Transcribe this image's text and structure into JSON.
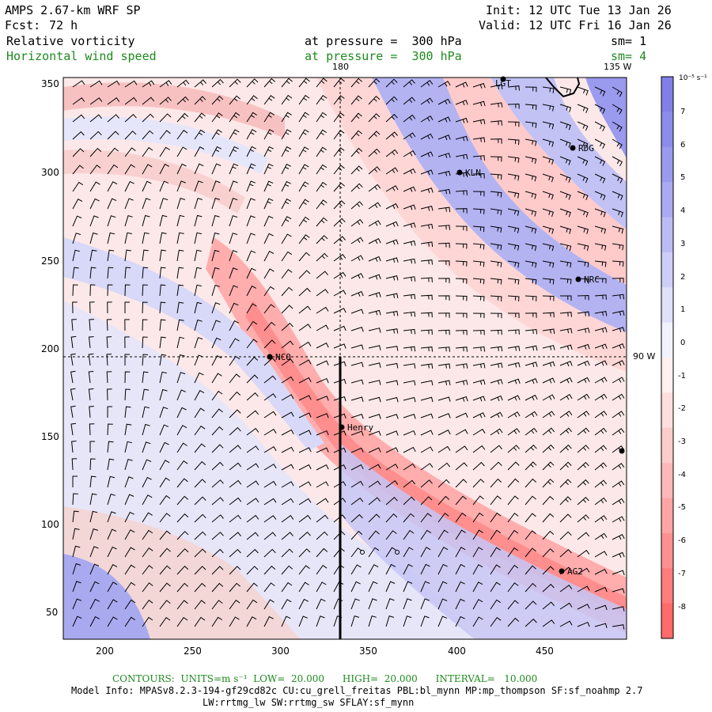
{
  "header": {
    "model": "AMPS 2.67-km WRF SP",
    "fcst_label": "Fcst:",
    "fcst_value": "72 h",
    "init": "Init: 12 UTC Tue 13 Jan 26",
    "valid": "Valid: 12 UTC Fri 16 Jan 26",
    "field1": "Relative vorticity",
    "field2": "Horizontal wind speed",
    "press1": "at pressure =  300 hPa",
    "press2": "at pressure =  300 hPa",
    "sm1": "sm= 1",
    "sm2": "sm= 4"
  },
  "axes": {
    "x_ticks": [
      "200",
      "250",
      "300",
      "350",
      "400",
      "450"
    ],
    "y_ticks": [
      "350",
      "300",
      "250",
      "200",
      "150",
      "100",
      "50"
    ],
    "lon_180": "180",
    "lon_135": "135 W",
    "lon_90": "90 W"
  },
  "map": {
    "stations": [
      "LGT",
      "RDG",
      "KLN",
      "NRC",
      "NCO",
      "Henry",
      "AG2"
    ]
  },
  "colorbar": {
    "unit": "10⁻⁵ s⁻¹",
    "labels": [
      "7",
      "6",
      "5",
      "4",
      "3",
      "2",
      "1",
      "0",
      "-1",
      "-2",
      "-3",
      "-4",
      "-5",
      "-6",
      "-7",
      "-8"
    ],
    "colors": [
      "#8080e8",
      "#8c8ceb",
      "#9a9aee",
      "#aaaaf2",
      "#bcbcf5",
      "#ceceF8",
      "#e0e0fb",
      "#f2f2ff",
      "#fff0f0",
      "#ffdede",
      "#ffcccc",
      "#ffb8b8",
      "#ffa4a4",
      "#ff9090",
      "#ff7c7c",
      "#ff6a6a"
    ]
  },
  "footer": {
    "contours": "CONTOURS:  UNITS=m s⁻¹  LOW=  20.000      HIGH=  20.000      INTERVAL=   10.000",
    "info1": "Model Info: MPASv8.2.3-194-gf29cd82c CU:cu_grell_freitas PBL:bl_mynn MP:mp_thompson SF:sf_noahmp 2.7",
    "info2": "LW:rrtmg_lw SW:rrtmg_sw SFLAY:sf_mynn"
  }
}
